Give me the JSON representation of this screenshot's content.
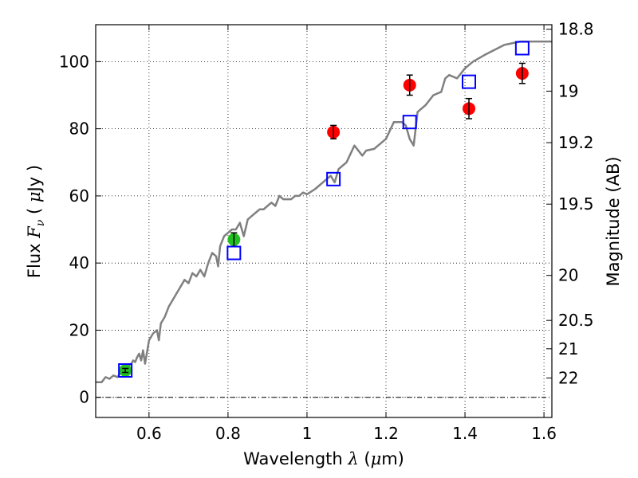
{
  "chart_data": {
    "type": "scatter",
    "xlabel": {
      "pre": "Wavelength ",
      "sym": "λ",
      "mid": " (",
      "mu": "μ",
      "post": "m)"
    },
    "ylabel": {
      "pre": "Flux  ",
      "sym": "F",
      "sub": "ν",
      "mid": "  ( ",
      "mu": "μ",
      "post": "Jy )"
    },
    "ylabel_right": "Magnitude (AB)",
    "xlim": [
      0.465,
      1.62
    ],
    "ylim": [
      -6,
      111
    ],
    "grid": true,
    "x_ticks": [
      {
        "value": 0.6,
        "label": "0.6"
      },
      {
        "value": 0.8,
        "label": "0.8"
      },
      {
        "value": 1.0,
        "label": "1"
      },
      {
        "value": 1.2,
        "label": "1.2"
      },
      {
        "value": 1.4,
        "label": "1.4"
      },
      {
        "value": 1.6,
        "label": "1.6"
      }
    ],
    "y_ticks": [
      {
        "value": 0,
        "label": "0"
      },
      {
        "value": 20,
        "label": "20"
      },
      {
        "value": 40,
        "label": "40"
      },
      {
        "value": 60,
        "label": "60"
      },
      {
        "value": 80,
        "label": "80"
      },
      {
        "value": 100,
        "label": "100"
      }
    ],
    "mag_ticks": [
      {
        "mag": 18.8,
        "label": "18.8"
      },
      {
        "mag": 19.0,
        "label": "19"
      },
      {
        "mag": 19.2,
        "label": "19.2"
      },
      {
        "mag": 19.5,
        "label": "19.5"
      },
      {
        "mag": 20.0,
        "label": "20"
      },
      {
        "mag": 20.5,
        "label": "20.5"
      },
      {
        "mag": 21.0,
        "label": "21"
      },
      {
        "mag": 22.0,
        "label": "22"
      }
    ],
    "zero_line": 0,
    "model_spectrum": {
      "name": "model",
      "color": "#808080",
      "x": [
        0.465,
        0.48,
        0.49,
        0.5,
        0.51,
        0.52,
        0.53,
        0.54,
        0.55,
        0.555,
        0.56,
        0.565,
        0.57,
        0.575,
        0.58,
        0.585,
        0.59,
        0.6,
        0.61,
        0.62,
        0.625,
        0.63,
        0.64,
        0.65,
        0.66,
        0.67,
        0.68,
        0.69,
        0.7,
        0.71,
        0.72,
        0.73,
        0.74,
        0.75,
        0.76,
        0.77,
        0.775,
        0.78,
        0.79,
        0.8,
        0.81,
        0.82,
        0.83,
        0.84,
        0.85,
        0.86,
        0.87,
        0.88,
        0.89,
        0.9,
        0.91,
        0.92,
        0.93,
        0.94,
        0.95,
        0.96,
        0.97,
        0.98,
        0.99,
        1.0,
        1.02,
        1.04,
        1.06,
        1.07,
        1.08,
        1.09,
        1.1,
        1.12,
        1.14,
        1.15,
        1.17,
        1.2,
        1.22,
        1.24,
        1.25,
        1.26,
        1.27,
        1.28,
        1.3,
        1.32,
        1.34,
        1.35,
        1.36,
        1.38,
        1.4,
        1.42,
        1.45,
        1.5,
        1.54,
        1.57,
        1.6,
        1.62
      ],
      "y": [
        4.5,
        4.5,
        6,
        5.5,
        6.5,
        6,
        7.5,
        8,
        9.5,
        10,
        11,
        10.5,
        12,
        13,
        11,
        14,
        10,
        17,
        19,
        20,
        17,
        22,
        24,
        27,
        29,
        31,
        33,
        35,
        34,
        37,
        36,
        38,
        36,
        40,
        43,
        42,
        39,
        45,
        48,
        49,
        50,
        50,
        52,
        48,
        53,
        54,
        55,
        56,
        56,
        57,
        58,
        57,
        60,
        59,
        59,
        59,
        60,
        60,
        61,
        60.5,
        62,
        64,
        66,
        64,
        68,
        69,
        70,
        75,
        72,
        73.5,
        74,
        77,
        82,
        82,
        81,
        77,
        75,
        85,
        87,
        90,
        91,
        95,
        96,
        95,
        98,
        100,
        102,
        105,
        106,
        106,
        106,
        106
      ]
    },
    "series": [
      {
        "name": "red points",
        "color": "#ff0000",
        "marker": "circle",
        "x": [
          1.067,
          1.26,
          1.41,
          1.545
        ],
        "y": [
          79,
          93,
          86,
          96.5
        ],
        "err": [
          2,
          3,
          3,
          3
        ]
      },
      {
        "name": "green points",
        "color": "#20c020",
        "marker": "circle",
        "x": [
          0.54,
          0.815
        ],
        "y": [
          8,
          47
        ],
        "err": [
          0.6,
          2
        ]
      },
      {
        "name": "model synthetic photometry",
        "color": "#0000ff",
        "marker": "open-square",
        "x": [
          0.54,
          0.815,
          1.067,
          1.26,
          1.41,
          1.545
        ],
        "y": [
          8,
          43,
          65,
          82,
          94,
          104
        ]
      }
    ]
  }
}
